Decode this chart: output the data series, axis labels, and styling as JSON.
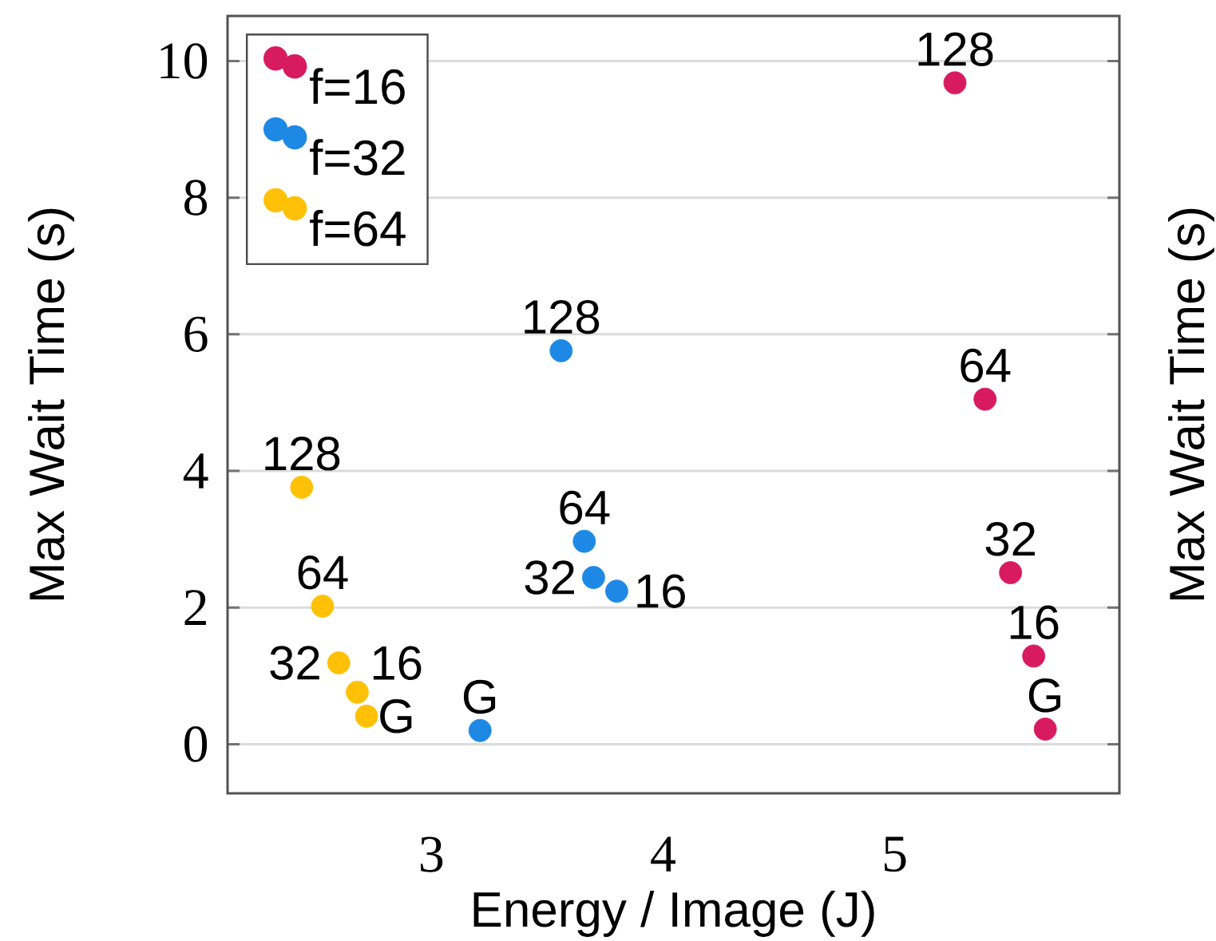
{
  "chart_data": {
    "type": "scatter",
    "xlabel": "Energy / Image (J)",
    "ylabel": "Max Wait Time (s)",
    "y2label": "Max Wait Time (s)",
    "xlim": [
      2.12,
      5.97
    ],
    "ylim": [
      -0.72,
      10.66
    ],
    "xticks": [
      3,
      4,
      5
    ],
    "yticks": [
      0,
      2,
      4,
      6,
      8,
      10
    ],
    "grid": "y",
    "legend": "top left",
    "marker": "circle",
    "series": [
      {
        "name": "f=16",
        "color": "#d81b60",
        "x": [
          5.26,
          5.39,
          5.5,
          5.6,
          5.65
        ],
        "values": [
          9.68,
          5.05,
          2.51,
          1.29,
          0.22
        ]
      },
      {
        "name": "f=32",
        "color": "#1e88e5",
        "x": [
          3.56,
          3.66,
          3.7,
          3.8,
          3.21
        ],
        "values": [
          5.76,
          2.97,
          2.44,
          2.24,
          0.2
        ]
      },
      {
        "name": "f=64",
        "color": "#ffc107",
        "x": [
          2.44,
          2.53,
          2.6,
          2.68,
          2.72
        ],
        "values": [
          3.76,
          2.02,
          1.19,
          0.76,
          0.41
        ]
      }
    ],
    "annotations": [
      {
        "text": "128",
        "x": 5.26,
        "y": 9.68
      },
      {
        "text": "64",
        "x": 5.39,
        "y": 5.05
      },
      {
        "text": "32",
        "x": 5.5,
        "y": 2.51
      },
      {
        "text": "16",
        "x": 5.6,
        "y": 1.29
      },
      {
        "text": "G",
        "x": 5.65,
        "y": 0.22
      },
      {
        "text": "128",
        "x": 3.56,
        "y": 5.76
      },
      {
        "text": "64",
        "x": 3.66,
        "y": 2.97
      },
      {
        "text": "32",
        "x": 3.7,
        "y": 2.44
      },
      {
        "text": "16",
        "x": 3.8,
        "y": 2.24
      },
      {
        "text": "G",
        "x": 3.21,
        "y": 0.2
      },
      {
        "text": "128",
        "x": 2.44,
        "y": 3.76
      },
      {
        "text": "64",
        "x": 2.53,
        "y": 2.02
      },
      {
        "text": "32",
        "x": 2.6,
        "y": 1.19
      },
      {
        "text": "16",
        "x": 2.68,
        "y": 0.76
      },
      {
        "text": "G",
        "x": 2.72,
        "y": 0.41
      }
    ]
  }
}
